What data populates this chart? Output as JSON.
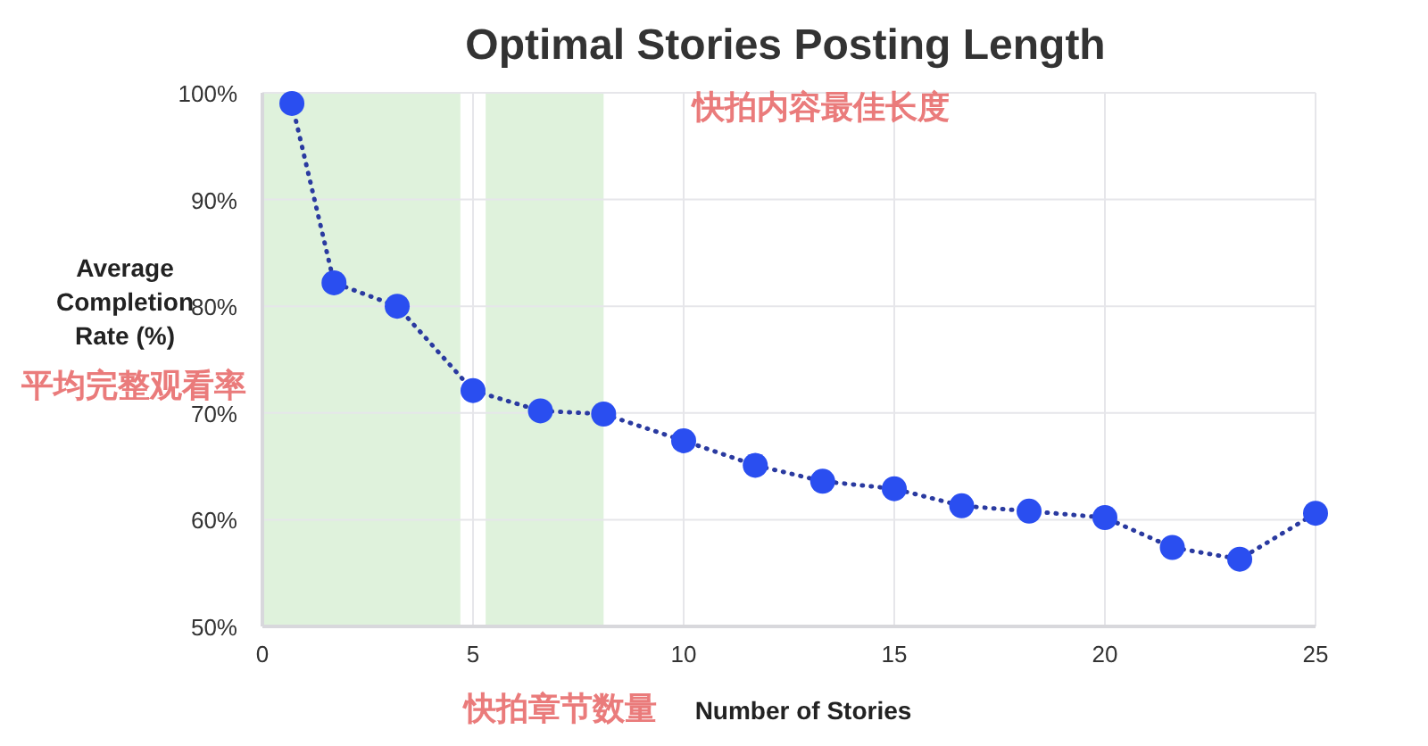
{
  "chart_data": {
    "type": "line",
    "title": "Optimal Stories Posting Length",
    "xlabel": "Number of Stories",
    "ylabel": "Average Completion Rate (%)",
    "annotations": [
      "快拍内容最佳长度",
      "平均完整观看率",
      "快拍章节数量"
    ],
    "x": [
      0.7,
      1.7,
      3.2,
      5,
      6.6,
      8.1,
      10,
      11.7,
      13.3,
      15,
      16.6,
      18.2,
      20,
      21.6,
      23.2,
      25
    ],
    "series": [
      {
        "color": "#2a4ef0",
        "values": [
          99,
          82.2,
          80,
          72.1,
          70.2,
          69.9,
          67.4,
          65.1,
          63.6,
          62.9,
          61.3,
          60.8,
          60.2,
          57.4,
          56.3,
          60.6
        ]
      }
    ],
    "marker": "circle",
    "line_style": "dotted",
    "grid": true,
    "xlim": [
      0,
      25
    ],
    "xticks": [
      0,
      5,
      10,
      15,
      20,
      25
    ],
    "ylim": [
      50,
      100
    ],
    "yticks": [
      {
        "value": 50,
        "label": "50%"
      },
      {
        "value": 60,
        "label": "60%"
      },
      {
        "value": 70,
        "label": "70%"
      },
      {
        "value": 80,
        "label": "80%"
      },
      {
        "value": 90,
        "label": "90%"
      },
      {
        "value": 100,
        "label": "100%"
      }
    ],
    "bands": [
      {
        "axis": "x",
        "from": 0,
        "to": 4.7,
        "color": "#dff2dc"
      },
      {
        "axis": "x",
        "from": 5.3,
        "to": 8.1,
        "color": "#dff2dc"
      }
    ]
  }
}
